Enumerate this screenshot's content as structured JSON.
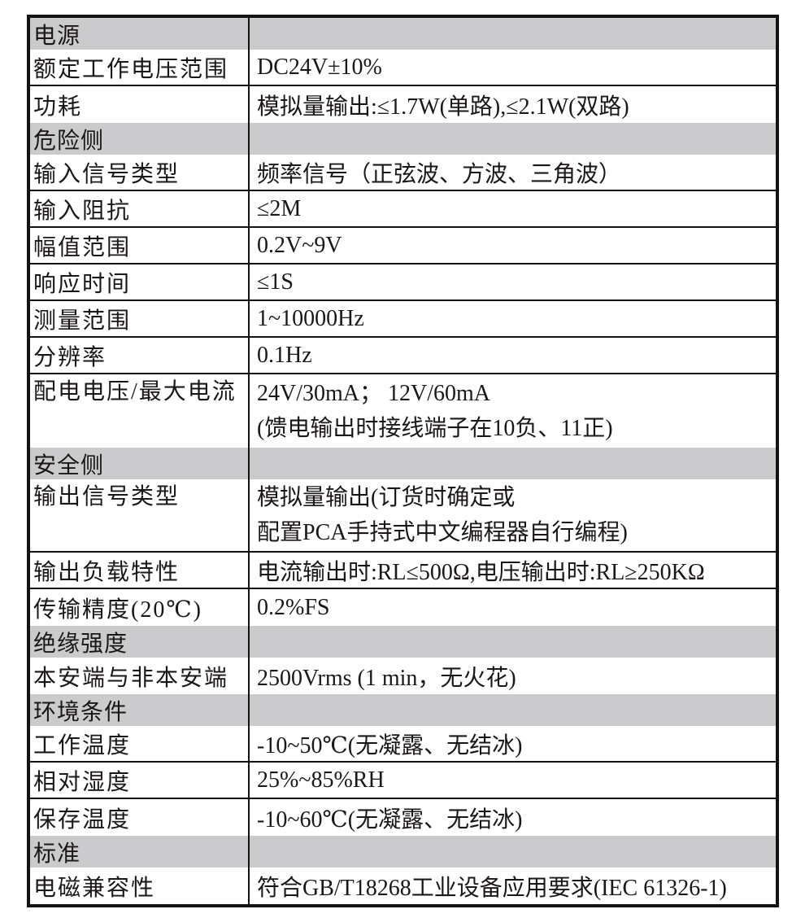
{
  "table": {
    "colors": {
      "section_bg": "#cbcbce",
      "border": "#131313",
      "text": "#1c1717"
    },
    "rows": [
      {
        "type": "section",
        "label": "电源"
      },
      {
        "type": "item",
        "label": "额定工作电压范围",
        "value": "DC24V±10%"
      },
      {
        "type": "item",
        "label": "功耗",
        "value": "模拟量输出:≤1.7W(单路),≤2.1W(双路)"
      },
      {
        "type": "section",
        "label": "危险侧"
      },
      {
        "type": "item",
        "label": "输入信号类型",
        "value": "频率信号（正弦波、方波、三角波）"
      },
      {
        "type": "item",
        "label": "输入阻抗",
        "value": "≤2M"
      },
      {
        "type": "item",
        "label": "幅值范围",
        "value": "0.2V~9V"
      },
      {
        "type": "item",
        "label": "响应时间",
        "value": "≤1S"
      },
      {
        "type": "item",
        "label": "测量范围",
        "value": "1~10000Hz"
      },
      {
        "type": "item",
        "label": "分辨率",
        "value": "0.1Hz"
      },
      {
        "type": "item2",
        "label": "配电电压/最大电流",
        "values": [
          "24V/30mA； 12V/60mA",
          "(馈电输出时接线端子在10负、11正)"
        ]
      },
      {
        "type": "section",
        "label": "安全侧"
      },
      {
        "type": "item2",
        "label": "输出信号类型",
        "values": [
          "模拟量输出(订货时确定或",
          "配置PCA手持式中文编程器自行编程)"
        ]
      },
      {
        "type": "item",
        "label": "输出负载特性",
        "value": "电流输出时:RL≤500Ω,电压输出时:RL≥250KΩ"
      },
      {
        "type": "item",
        "label": "传输精度(20℃)",
        "value": "0.2%FS"
      },
      {
        "type": "section",
        "label": "绝缘强度"
      },
      {
        "type": "item",
        "label": "本安端与非本安端",
        "value": "2500Vrms (1 min，无火花)"
      },
      {
        "type": "section",
        "label": "环境条件"
      },
      {
        "type": "item",
        "label": "工作温度",
        "value": "-10~50℃(无凝露、无结冰)"
      },
      {
        "type": "item",
        "label": "相对湿度",
        "value": "25%~85%RH"
      },
      {
        "type": "item",
        "label": "保存温度",
        "value": "-10~60℃(无凝露、无结冰)"
      },
      {
        "type": "section",
        "label": "标准"
      },
      {
        "type": "item",
        "label": "电磁兼容性",
        "value": "符合GB/T18268工业设备应用要求(IEC 61326-1)"
      }
    ]
  }
}
